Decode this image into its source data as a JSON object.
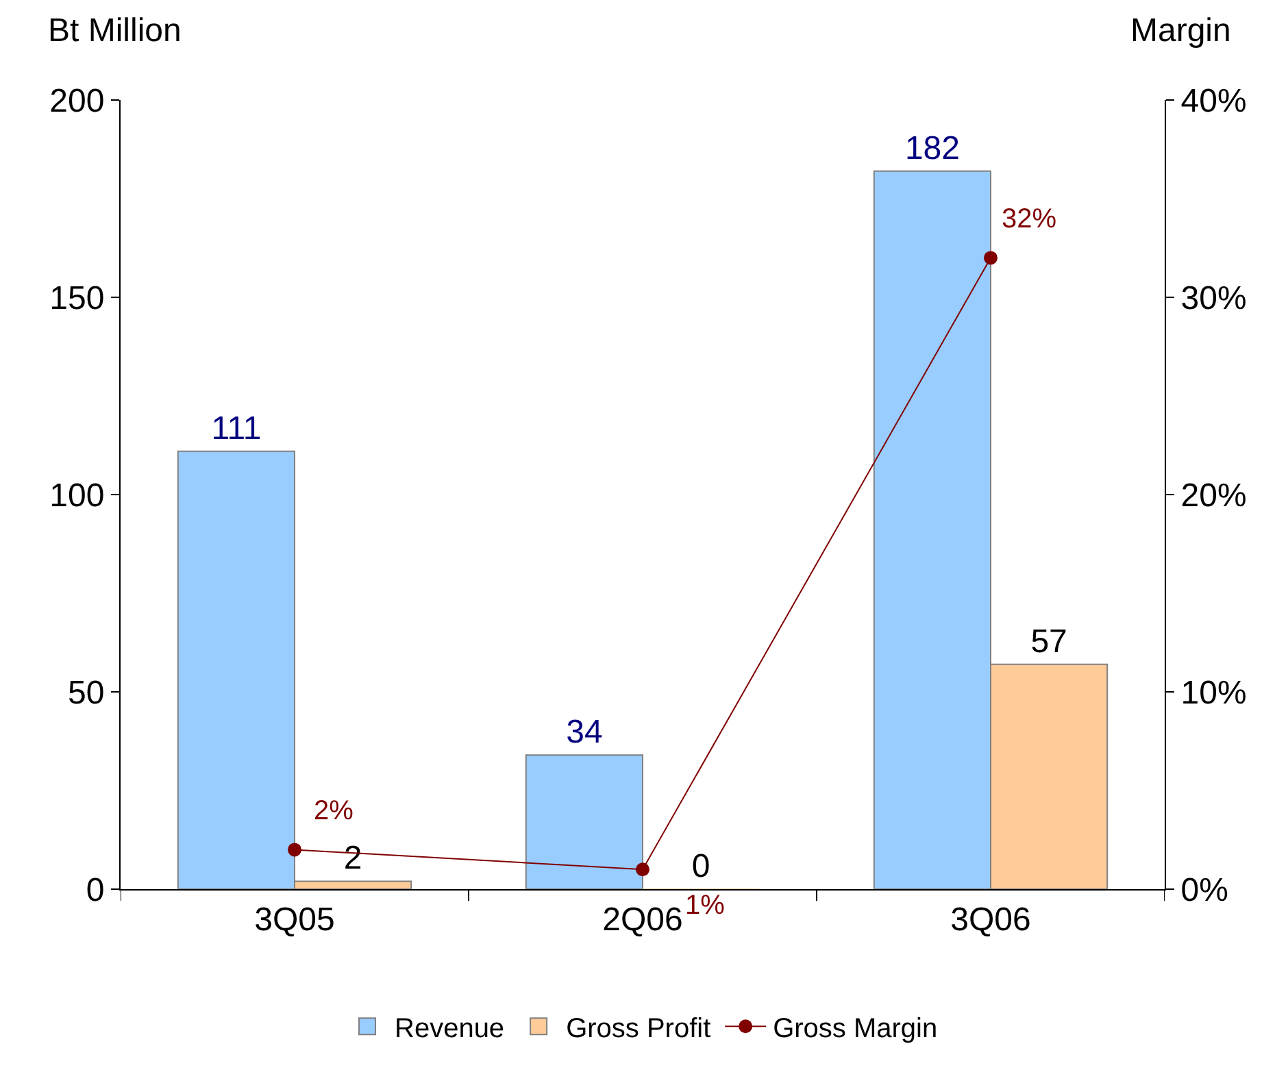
{
  "chart_data": {
    "type": "bar",
    "categories": [
      "3Q05",
      "2Q06",
      "3Q06"
    ],
    "ylabel": "Bt Million",
    "y2label": "Margin",
    "series": [
      {
        "name": "Revenue",
        "color": "#99ccff",
        "values": [
          111,
          34,
          182
        ],
        "value_labels": [
          "111",
          "34",
          "182"
        ]
      },
      {
        "name": "Gross Profit",
        "color": "#ffcc99",
        "values": [
          2,
          0,
          57
        ],
        "value_labels": [
          "2",
          "0",
          "57"
        ]
      },
      {
        "name": "Gross Margin",
        "type": "line",
        "axis": "y2",
        "color": "#800000",
        "marker": "circle",
        "values": [
          2,
          1,
          32
        ],
        "value_labels": [
          "2%",
          "1%",
          "32%"
        ]
      }
    ],
    "ylim": [
      0,
      200
    ],
    "yticks": [
      0,
      50,
      100,
      150,
      200
    ],
    "y2lim": [
      0,
      40
    ],
    "y2ticks": [
      {
        "value": 0,
        "label": "0%"
      },
      {
        "value": 10,
        "label": "10%"
      },
      {
        "value": 20,
        "label": "20%"
      },
      {
        "value": 30,
        "label": "30%"
      },
      {
        "value": 40,
        "label": "40%"
      }
    ],
    "legend": "bottom"
  }
}
